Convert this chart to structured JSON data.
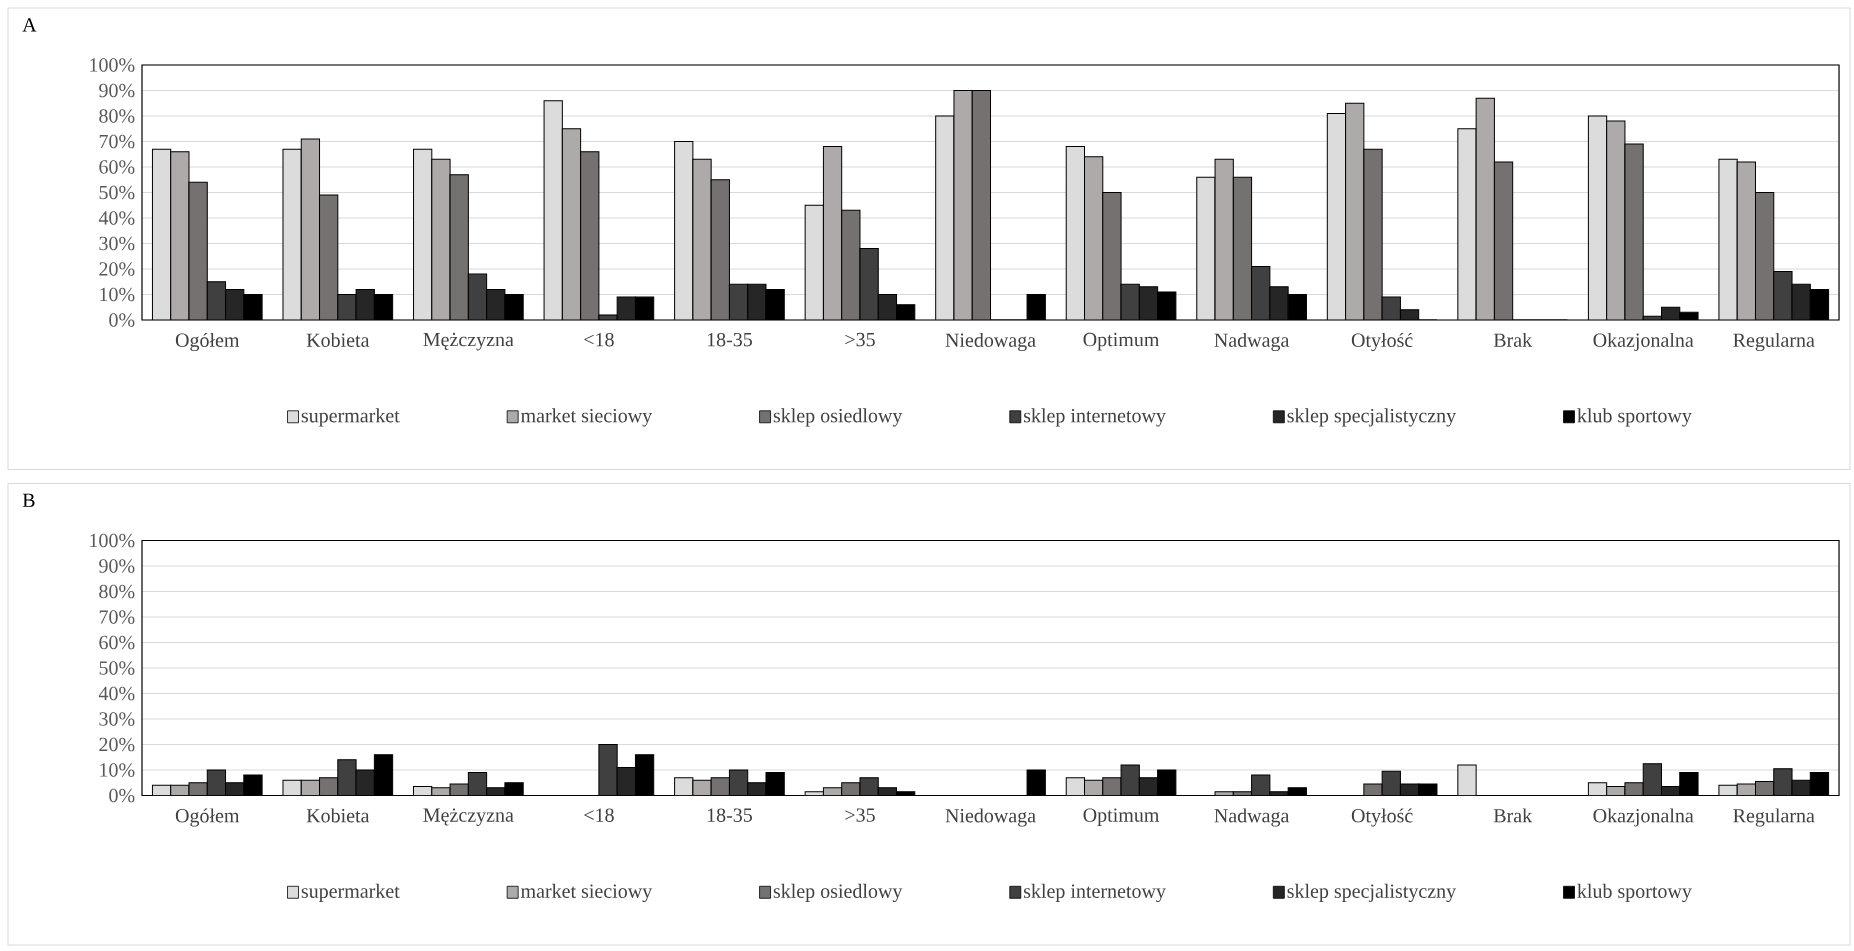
{
  "chart_data": [
    {
      "type": "bar",
      "title": "A",
      "categories": [
        "Ogółem",
        "Kobieta",
        "Mężczyzna",
        "<18",
        "18-35",
        ">35",
        "Niedowaga",
        "Optimum",
        "Nadwaga",
        "Otyłość",
        "Brak",
        "Okazjonalna",
        "Regularna"
      ],
      "series": [
        {
          "name": "supermarket",
          "color": "#dcdcdc",
          "values": [
            67,
            67,
            67,
            86,
            70,
            45,
            80,
            68,
            56,
            81,
            75,
            80,
            63
          ]
        },
        {
          "name": "market sieciowy",
          "color": "#aeaaaa",
          "values": [
            66,
            71,
            63,
            75,
            63,
            68,
            90,
            64,
            63,
            85,
            87,
            78,
            62
          ]
        },
        {
          "name": "sklep osiedlowy",
          "color": "#767171",
          "values": [
            54,
            49,
            57,
            66,
            55,
            43,
            90,
            50,
            56,
            67,
            62,
            69,
            50
          ]
        },
        {
          "name": "sklep internetowy",
          "color": "#404040",
          "values": [
            15,
            10,
            18,
            2,
            14,
            28,
            0,
            14,
            21,
            9,
            0,
            1.5,
            19
          ]
        },
        {
          "name": "sklep specjalistyczny",
          "color": "#262626",
          "values": [
            12,
            12,
            12,
            9,
            14,
            10,
            0,
            13,
            13,
            4,
            0,
            5,
            14
          ]
        },
        {
          "name": "klub sportowy",
          "color": "#000000",
          "values": [
            10,
            10,
            10,
            9,
            12,
            6,
            10,
            11,
            10,
            0,
            0,
            3,
            12
          ]
        }
      ],
      "ylim": [
        0,
        100
      ],
      "yticks": [
        {
          "value": 0,
          "label": "0%"
        },
        {
          "value": 10,
          "label": "10%"
        },
        {
          "value": 20,
          "label": "20%"
        },
        {
          "value": 30,
          "label": "30%"
        },
        {
          "value": 40,
          "label": "40%"
        },
        {
          "value": 50,
          "label": "50%"
        },
        {
          "value": 60,
          "label": "60%"
        },
        {
          "value": 70,
          "label": "70%"
        },
        {
          "value": 80,
          "label": "80%"
        },
        {
          "value": 90,
          "label": "90%"
        },
        {
          "value": 100,
          "label": "100%"
        }
      ],
      "grid": "y",
      "legend": "bottom"
    },
    {
      "type": "bar",
      "title": "B",
      "categories": [
        "Ogółem",
        "Kobieta",
        "Mężczyzna",
        "<18",
        "18-35",
        ">35",
        "Niedowaga",
        "Optimum",
        "Nadwaga",
        "Otyłość",
        "Brak",
        "Okazjonalna",
        "Regularna"
      ],
      "series": [
        {
          "name": "supermarket",
          "color": "#dcdcdc",
          "values": [
            4,
            6,
            3.5,
            0,
            7,
            1.5,
            0,
            7,
            0,
            0,
            12,
            5,
            4
          ]
        },
        {
          "name": "market sieciowy",
          "color": "#aeaaaa",
          "values": [
            4,
            6,
            3,
            0,
            6,
            3,
            0,
            6,
            1.5,
            0,
            0,
            3.5,
            4.5
          ]
        },
        {
          "name": "sklep osiedlowy",
          "color": "#767171",
          "values": [
            5,
            7,
            4.5,
            0,
            7,
            5,
            0,
            7,
            1.5,
            4.5,
            0,
            5,
            5.5
          ]
        },
        {
          "name": "sklep internetowy",
          "color": "#404040",
          "values": [
            10,
            14,
            9,
            20,
            10,
            7,
            0,
            12,
            8,
            9.5,
            0,
            12.5,
            10.5
          ]
        },
        {
          "name": "sklep specjalistyczny",
          "color": "#262626",
          "values": [
            5,
            10,
            3,
            11,
            5,
            3,
            0,
            7,
            1.5,
            4.5,
            0,
            3.5,
            6
          ]
        },
        {
          "name": "klub sportowy",
          "color": "#000000",
          "values": [
            8,
            16,
            5,
            16,
            9,
            1.5,
            10,
            10,
            3,
            4.5,
            0,
            9,
            9
          ]
        }
      ],
      "ylim": [
        0,
        100
      ],
      "yticks": [
        {
          "value": 0,
          "label": "0%"
        },
        {
          "value": 10,
          "label": "10%"
        },
        {
          "value": 20,
          "label": "20%"
        },
        {
          "value": 30,
          "label": "30%"
        },
        {
          "value": 40,
          "label": "40%"
        },
        {
          "value": 50,
          "label": "50%"
        },
        {
          "value": 60,
          "label": "60%"
        },
        {
          "value": 70,
          "label": "70%"
        },
        {
          "value": 80,
          "label": "80%"
        },
        {
          "value": 90,
          "label": "90%"
        },
        {
          "value": 100,
          "label": "100%"
        }
      ],
      "grid": "y",
      "legend": "bottom"
    }
  ]
}
